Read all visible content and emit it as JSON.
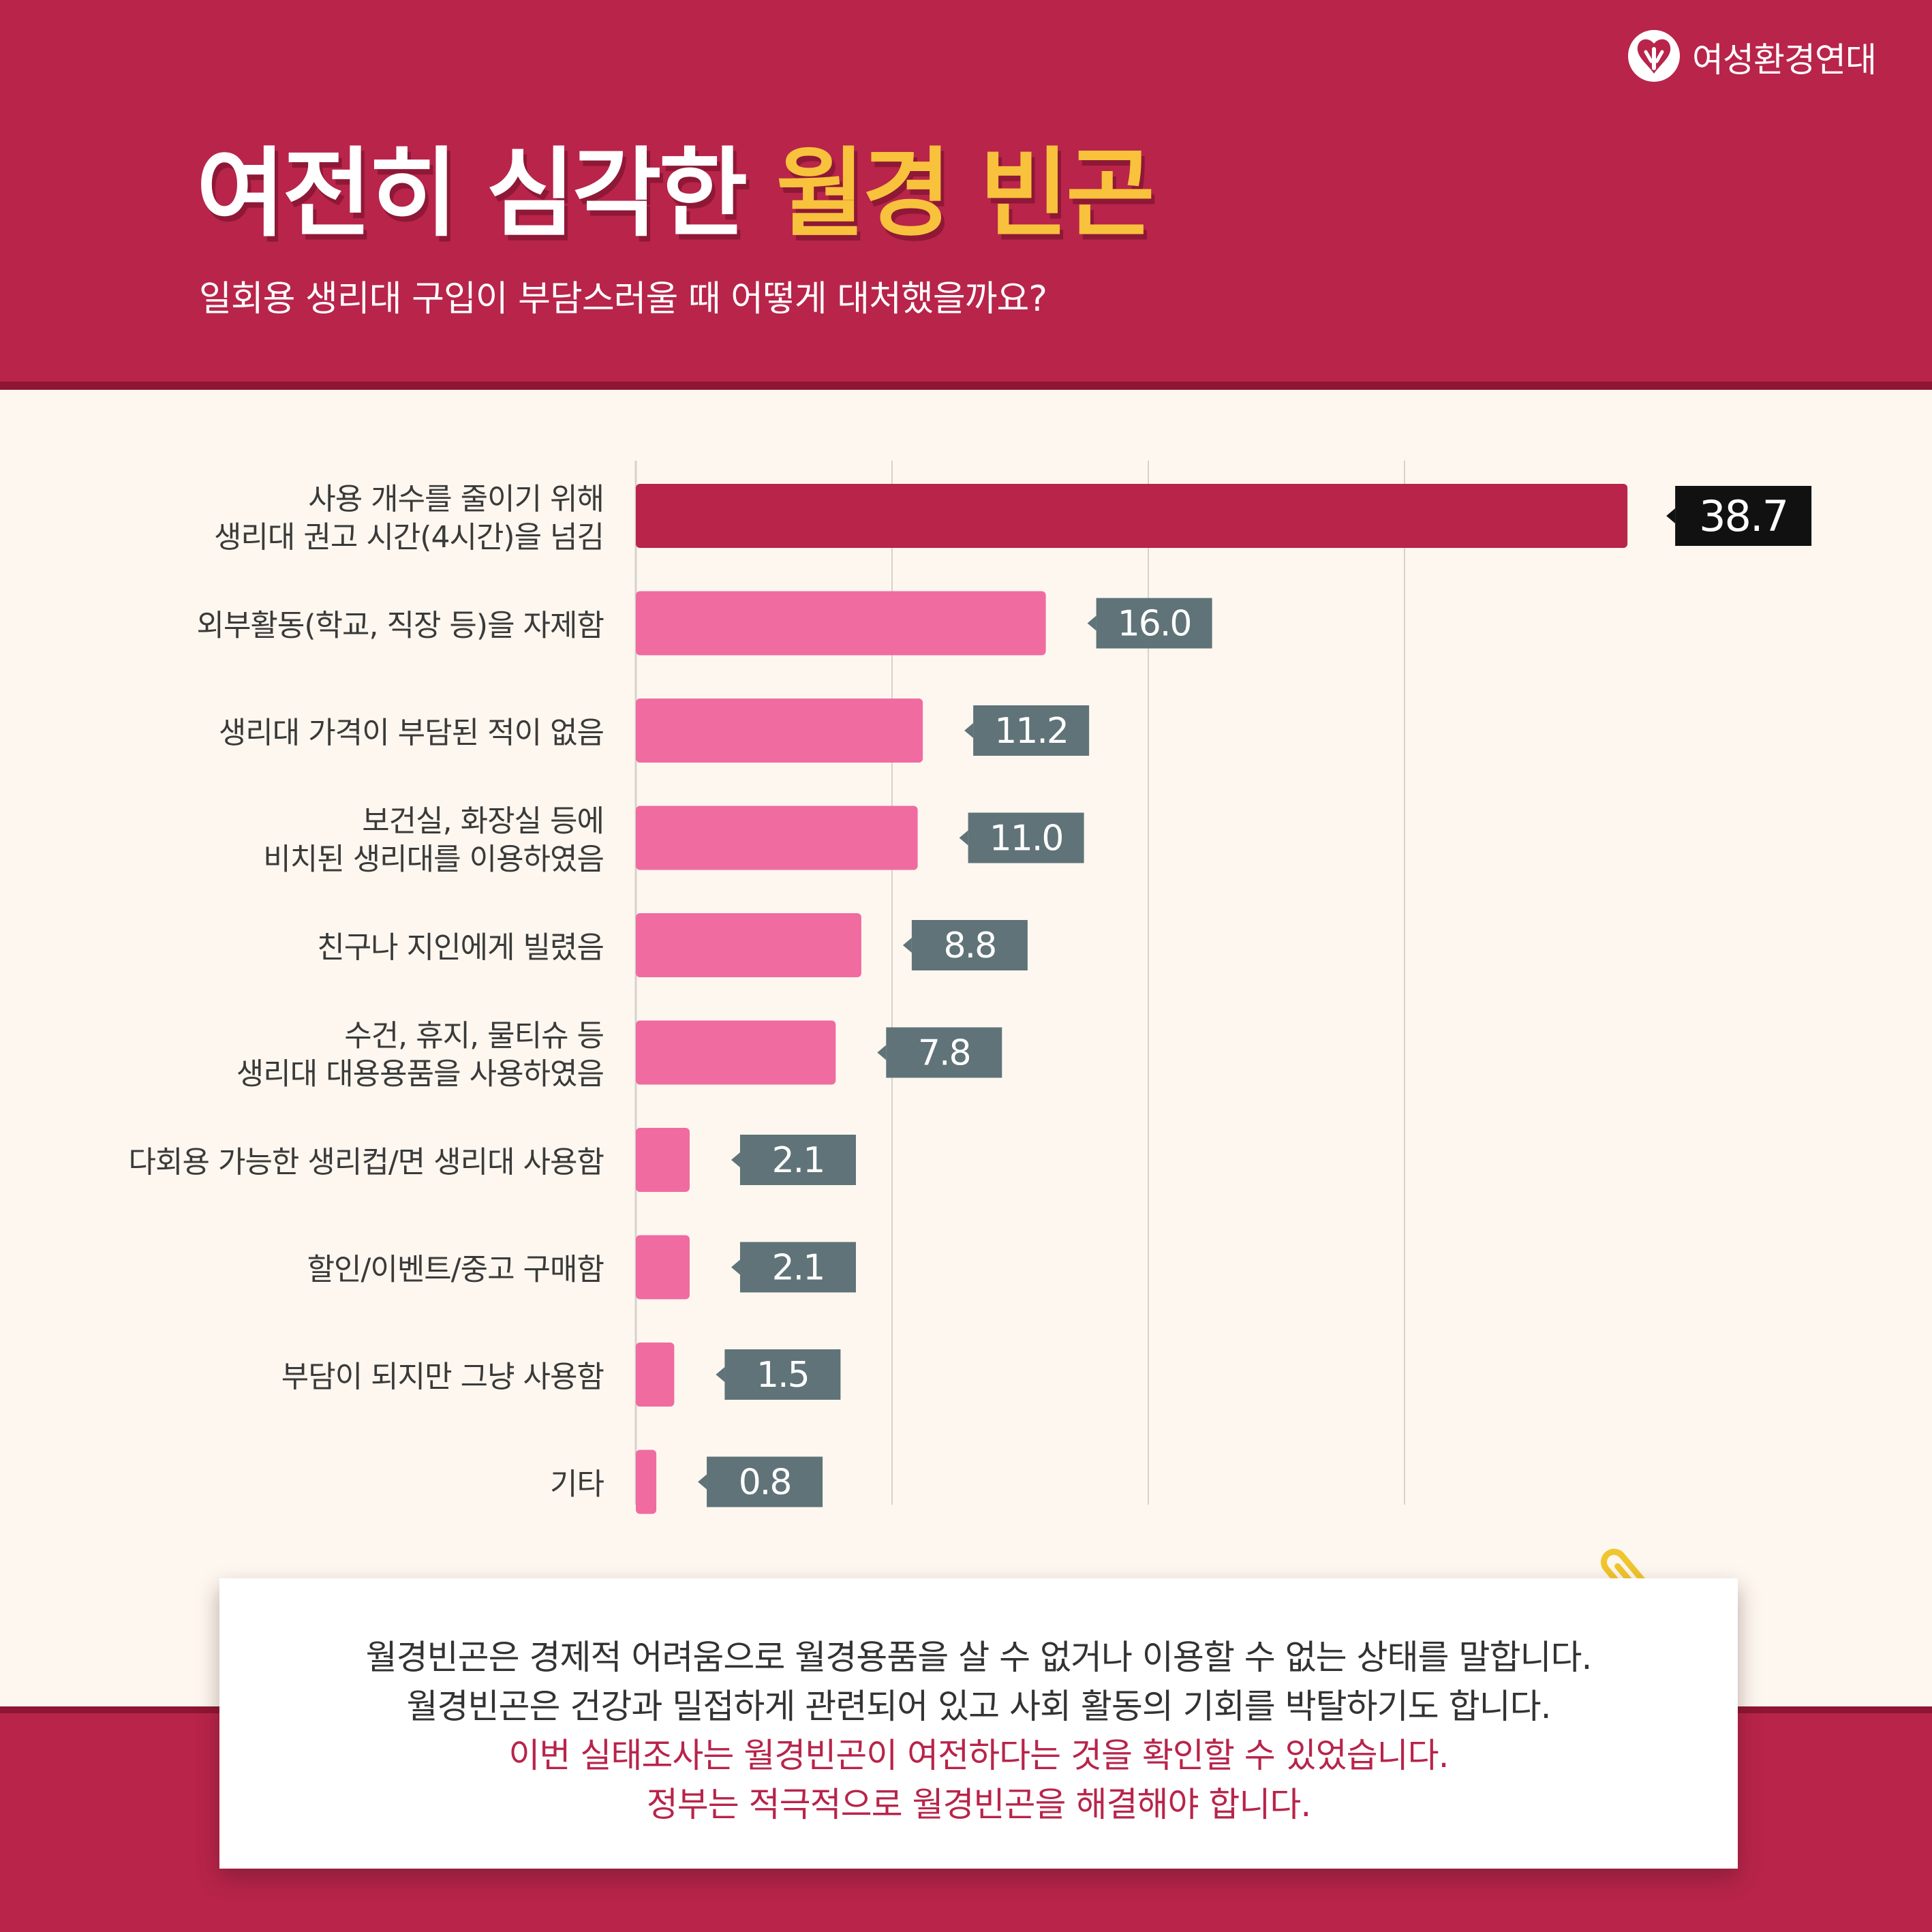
{
  "header": {
    "logo_label": "여성환경연대",
    "title_main": "여전히 심각한",
    "title_accent": "월경 빈곤",
    "subtitle": "일회용 생리대 구입이 부담스러울 때 어떻게 대처했을까요?"
  },
  "colors": {
    "brand": "#b8244a",
    "accent": "#f8c23d",
    "bar_top": "#b8244a",
    "bar_other": "#f06ba0",
    "label_top": "#111111",
    "label_other": "#5f7378",
    "background": "#fdf7ef"
  },
  "chart_data": {
    "type": "bar",
    "orientation": "horizontal",
    "categories": [
      [
        "사용 개수를 줄이기 위해",
        "생리대 권고 시간(4시간)을 넘김"
      ],
      [
        "외부활동(학교, 직장 등)을 자제함"
      ],
      [
        "생리대 가격이 부담된 적이 없음"
      ],
      [
        "보건실, 화장실 등에",
        "비치된 생리대를 이용하였음"
      ],
      [
        "친구나 지인에게 빌렸음"
      ],
      [
        "수건, 휴지, 물티슈 등",
        "생리대 대용용품을 사용하였음"
      ],
      [
        "다회용 가능한 생리컵/면 생리대 사용함"
      ],
      [
        "할인/이벤트/중고 구매함"
      ],
      [
        "부담이 되지만 그냥 사용함"
      ],
      [
        "기타"
      ]
    ],
    "values": [
      38.7,
      16.0,
      11.2,
      11.0,
      8.8,
      7.8,
      2.1,
      2.1,
      1.5,
      0.8
    ],
    "value_labels": [
      "38.7",
      "16.0",
      "11.2",
      "11.0",
      "8.8",
      "7.8",
      "2.1",
      "2.1",
      "1.5",
      "0.8"
    ],
    "xlim": [
      0,
      40
    ],
    "grid": true,
    "highlight_index": 0
  },
  "note": {
    "lines": [
      "월경빈곤은 경제적 어려움으로 월경용품을 살 수 없거나 이용할 수 없는 상태를 말합니다.",
      "월경빈곤은 건강과 밀접하게 관련되어 있고 사회 활동의 기회를 박탈하기도 합니다.",
      "이번 실태조사는 월경빈곤이 여전하다는 것을 확인할 수 있었습니다.",
      "정부는 적극적으로 월경빈곤을 해결해야 합니다."
    ],
    "icon": "paperclip-icon"
  }
}
